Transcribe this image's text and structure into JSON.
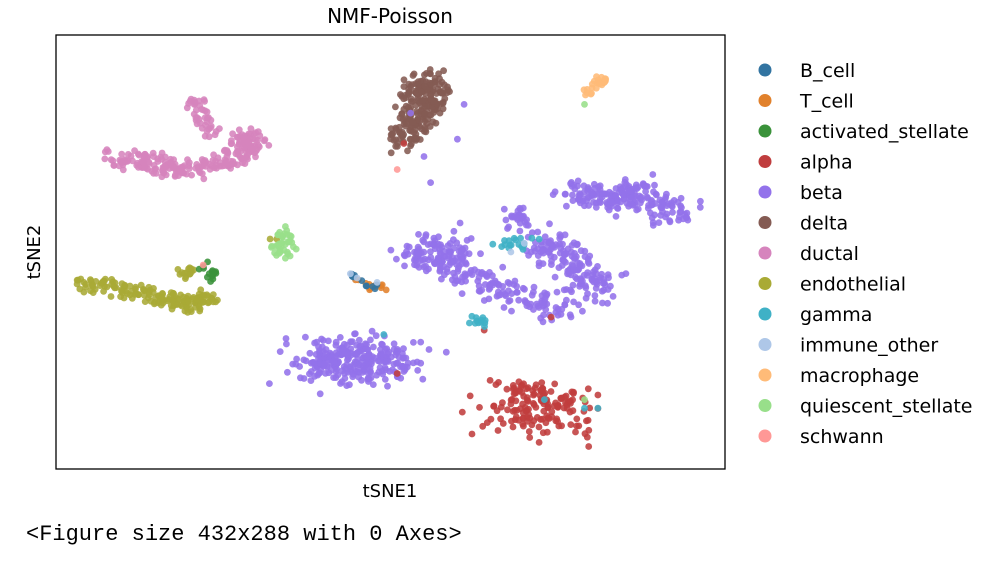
{
  "output_text": "<Figure size 432x288 with 0 Axes>",
  "chart_data": {
    "type": "scatter",
    "title": "NMF-Poisson",
    "xlabel": "tSNE1",
    "ylabel": "tSNE2",
    "xlim": [
      0,
      100
    ],
    "ylim": [
      0,
      100
    ],
    "grid": false,
    "show_ticks": false,
    "legend_position": "outside-right",
    "series": [
      {
        "name": "B_cell",
        "color": "#3274a1"
      },
      {
        "name": "T_cell",
        "color": "#e1812c"
      },
      {
        "name": "activated_stellate",
        "color": "#3a923a"
      },
      {
        "name": "alpha",
        "color": "#c03d3e"
      },
      {
        "name": "beta",
        "color": "#9372eb"
      },
      {
        "name": "delta",
        "color": "#845b53"
      },
      {
        "name": "ductal",
        "color": "#d684bd"
      },
      {
        "name": "endothelial",
        "color": "#a9aa35"
      },
      {
        "name": "gamma",
        "color": "#3fb1c6"
      },
      {
        "name": "immune_other",
        "color": "#aec7e8"
      },
      {
        "name": "macrophage",
        "color": "#ffbb78"
      },
      {
        "name": "quiescent_stellate",
        "color": "#98df8a"
      },
      {
        "name": "schwann",
        "color": "#ff9896"
      }
    ]
  }
}
